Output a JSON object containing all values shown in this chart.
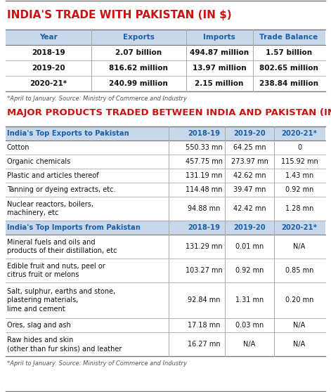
{
  "title1": "INDIA'S TRADE WITH PAKISTAN (IN $)",
  "title2": "MAJOR PRODUCTS TRADED BETWEEN INDIA AND PAKISTAN (IN $)",
  "title_color": "#cc1111",
  "header_color": "#1a5fa8",
  "bg_color": "#ffffff",
  "header_bg": "#c8d8ea",
  "row_alt_bg": "#ffffff",
  "table1_headers": [
    "Year",
    "Exports",
    "Imports",
    "Trade Balance"
  ],
  "table1_rows": [
    [
      "2018-19",
      "2.07 billion",
      "494.87 million",
      "1.57 billion"
    ],
    [
      "2019-20",
      "816.62 million",
      "13.97 million",
      "802.65 million"
    ],
    [
      "2020-21*",
      "240.99 million",
      "2.15 million",
      "238.84 million"
    ]
  ],
  "table1_footnote": "*April to January. Source: Ministry of Commerce and Industry",
  "exports_header": [
    "India's Top Exports to Pakistan",
    "2018-19",
    "2019-20",
    "2020-21*"
  ],
  "exports_rows": [
    [
      "Cotton",
      "550.33 mn",
      "64.25 mn",
      "0"
    ],
    [
      "Organic chemicals",
      "457.75 mn",
      "273.97 mn",
      "115.92 mn"
    ],
    [
      "Plastic and articles thereof",
      "131.19 mn",
      "42.62 mn",
      "1.43 mn"
    ],
    [
      "Tanning or dyeing extracts, etc.",
      "114.48 mn",
      "39.47 mn",
      "0.92 mn"
    ],
    [
      "Nuclear reactors, boilers,\nmachinery, etc",
      "94.88 mn",
      "42.42 mn",
      "1.28 mn"
    ]
  ],
  "imports_header": [
    "India's Top Imports from Pakistan",
    "2018-19",
    "2019-20",
    "2020-21*"
  ],
  "imports_rows": [
    [
      "Mineral fuels and oils and\nproducts of their distillation, etc",
      "131.29 mn",
      "0.01 mn",
      "N/A"
    ],
    [
      "Edible fruit and nuts, peel or\ncitrus fruit or melons",
      "103.27 mn",
      "0.92 mn",
      "0.85 mn"
    ],
    [
      "Salt, sulphur, earths and stone,\nplastering materials,\nlime and cement",
      "92.84 mn",
      "1.31 mn",
      "0.20 mn"
    ],
    [
      "Ores, slag and ash",
      "17.18 mn",
      "0.03 mn",
      "N/A"
    ],
    [
      "Raw hides and skin\n(other than fur skins) and leather",
      "16.27 mn",
      "N/A",
      "N/A"
    ]
  ],
  "table2_footnote": "*April to January. Source: Ministry of Commerce and Industry",
  "line_color": "#aaaaaa",
  "border_color": "#777777"
}
